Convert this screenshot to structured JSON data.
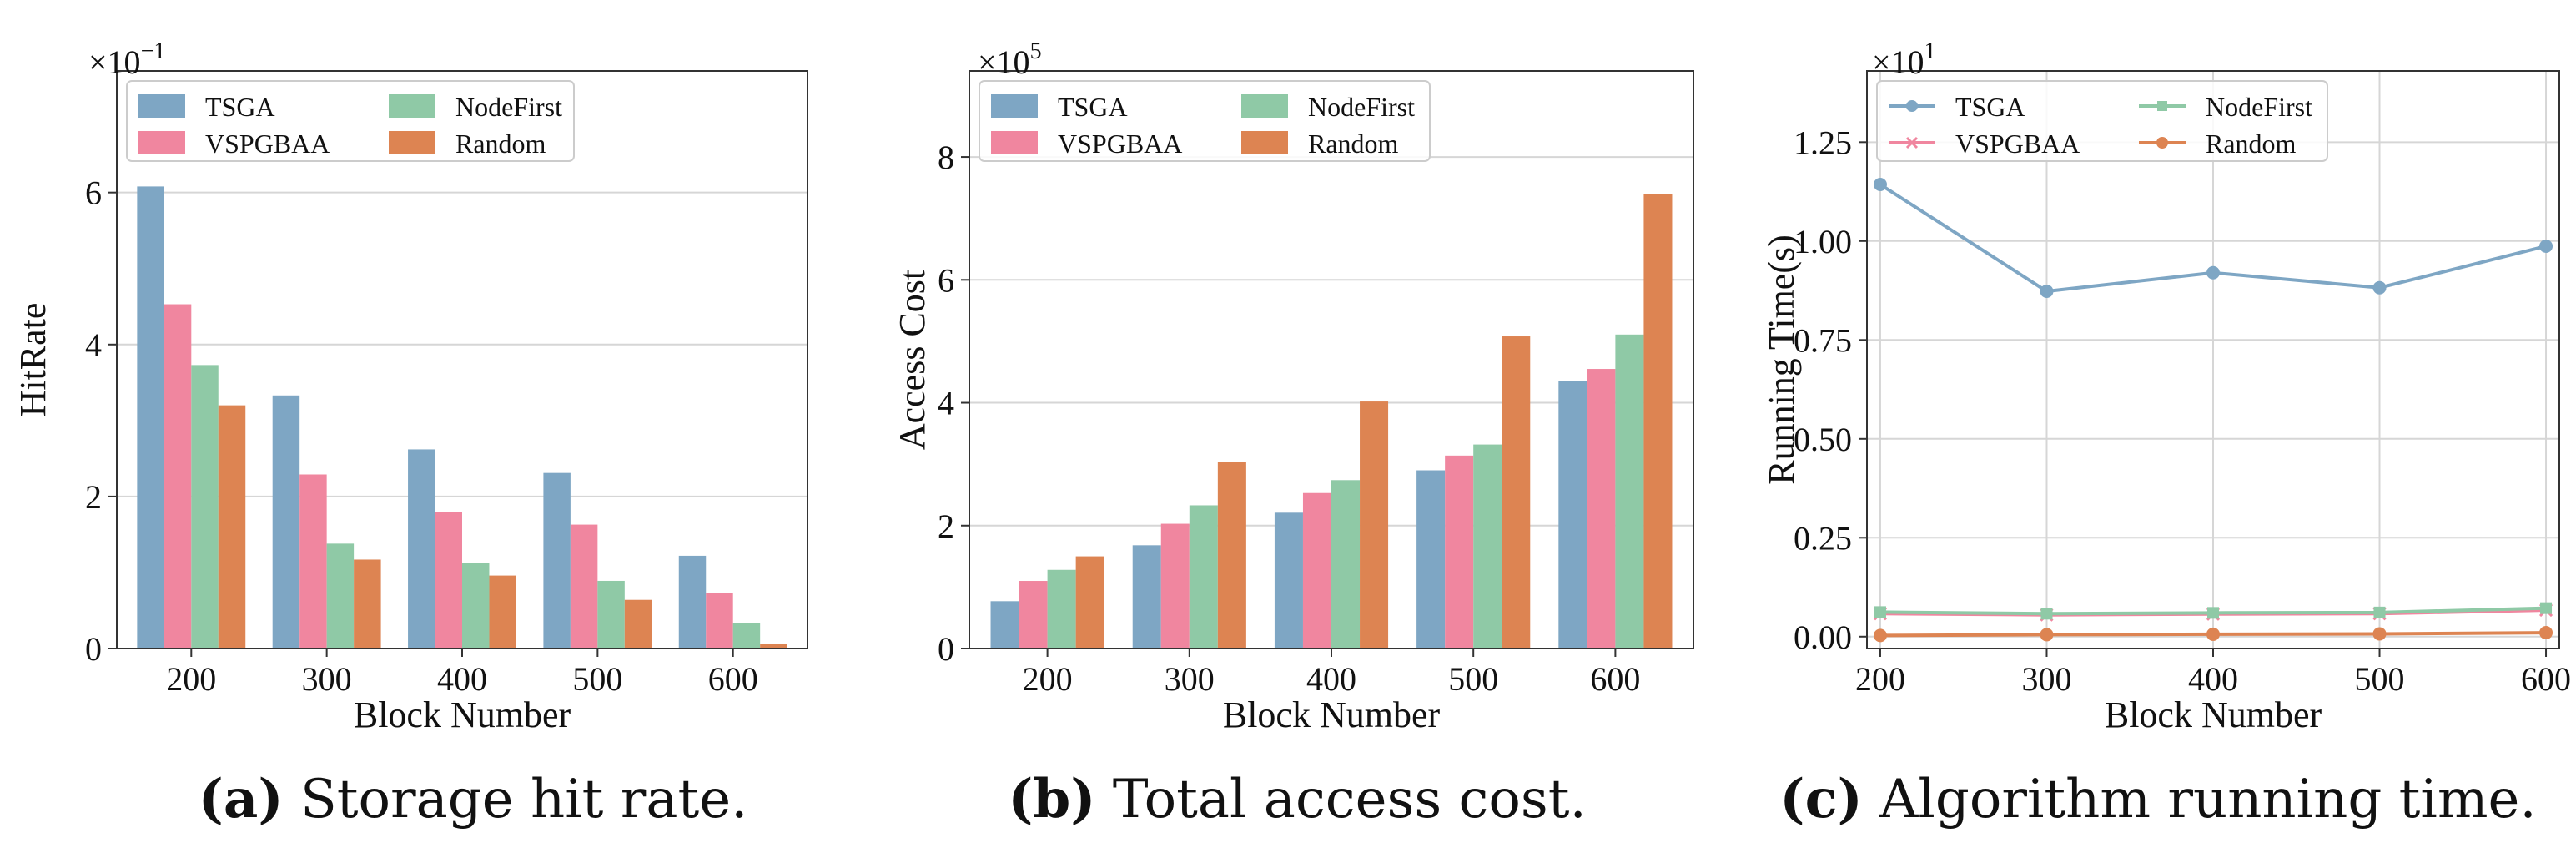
{
  "colors": {
    "TSGA": "#7ea6c4",
    "VSPGBAA": "#f0869f",
    "NodeFirst": "#8fc9a6",
    "Random": "#dd8452"
  },
  "chart_data": [
    {
      "type": "bar",
      "categories": [
        "200",
        "300",
        "400",
        "500",
        "600"
      ],
      "series": [
        {
          "name": "TSGA",
          "values": [
            6.08,
            3.33,
            2.62,
            2.31,
            1.22
          ]
        },
        {
          "name": "VSPGBAA",
          "values": [
            4.53,
            2.29,
            1.8,
            1.63,
            0.73
          ]
        },
        {
          "name": "NodeFirst",
          "values": [
            3.73,
            1.38,
            1.13,
            0.89,
            0.33
          ]
        },
        {
          "name": "Random",
          "values": [
            3.2,
            1.17,
            0.96,
            0.64,
            0.06
          ]
        }
      ],
      "xlabel": "Block Number",
      "ylabel": "HitRate",
      "ylim": [
        0,
        7.6
      ],
      "yticks": [
        0,
        2,
        4,
        6
      ],
      "ytick_labels": [
        "0",
        "2",
        "4",
        "6"
      ],
      "scale_label": "×10",
      "scale_exp": "−1",
      "grid": "horizontal",
      "legend": "top-left, 2 columns",
      "caption_letter": "(a)",
      "caption_text": " Storage hit rate."
    },
    {
      "type": "bar",
      "categories": [
        "200",
        "300",
        "400",
        "500",
        "600"
      ],
      "series": [
        {
          "name": "TSGA",
          "values": [
            0.77,
            1.68,
            2.21,
            2.9,
            4.35
          ]
        },
        {
          "name": "VSPGBAA",
          "values": [
            1.1,
            2.03,
            2.53,
            3.14,
            4.55
          ]
        },
        {
          "name": "NodeFirst",
          "values": [
            1.28,
            2.33,
            2.74,
            3.32,
            5.11
          ]
        },
        {
          "name": "Random",
          "values": [
            1.5,
            3.03,
            4.02,
            5.08,
            7.39
          ]
        }
      ],
      "xlabel": "Block Number",
      "ylabel": "Access Cost",
      "ylim": [
        0,
        9.4
      ],
      "yticks": [
        0,
        2,
        4,
        6,
        8
      ],
      "ytick_labels": [
        "0",
        "2",
        "4",
        "6",
        "8"
      ],
      "scale_label": "×10",
      "scale_exp": "5",
      "grid": "horizontal",
      "legend": "top-left, 2 columns",
      "caption_letter": "(b)",
      "caption_text": " Total access cost."
    },
    {
      "type": "line",
      "x": [
        200,
        300,
        400,
        500,
        600
      ],
      "x_labels": [
        "200",
        "300",
        "400",
        "500",
        "600"
      ],
      "series": [
        {
          "name": "TSGA",
          "values": [
            1.143,
            0.873,
            0.92,
            0.882,
            0.987
          ],
          "marker": "circle"
        },
        {
          "name": "VSPGBAA",
          "values": [
            0.058,
            0.055,
            0.057,
            0.058,
            0.067
          ],
          "marker": "x"
        },
        {
          "name": "NodeFirst",
          "values": [
            0.062,
            0.058,
            0.06,
            0.061,
            0.072
          ],
          "marker": "square"
        },
        {
          "name": "Random",
          "values": [
            0.003,
            0.005,
            0.006,
            0.007,
            0.01
          ],
          "marker": "circle"
        }
      ],
      "xlabel": "Block Number",
      "ylabel": "Running Time(s)",
      "xlim": [
        192,
        608
      ],
      "ylim": [
        -0.03,
        1.43
      ],
      "yticks": [
        0,
        0.25,
        0.5,
        0.75,
        1.0,
        1.25
      ],
      "ytick_labels": [
        "0.00",
        "0.25",
        "0.50",
        "0.75",
        "1.00",
        "1.25"
      ],
      "scale_label": "×10",
      "scale_exp": "1",
      "grid": "both",
      "legend": "top-left, 2 columns",
      "caption_letter": "(c)",
      "caption_text": " Algorithm running time."
    }
  ]
}
